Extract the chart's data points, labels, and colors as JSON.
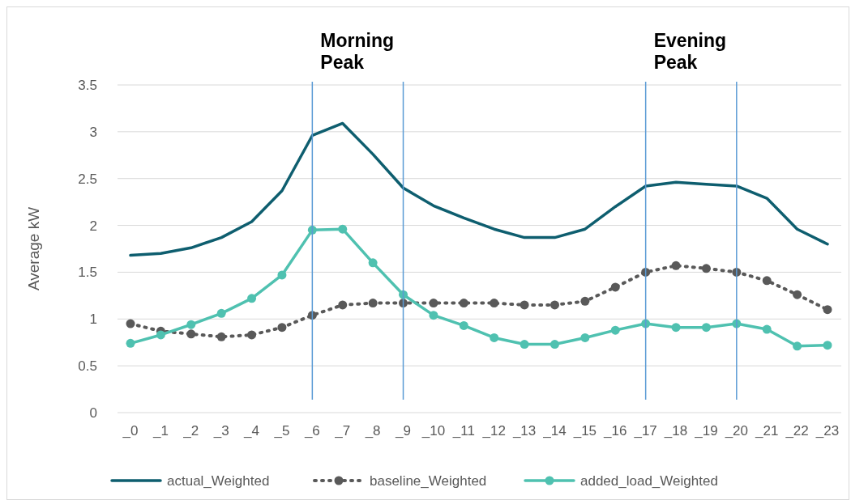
{
  "chart_data": {
    "type": "line",
    "ylabel": "Average kW",
    "categories": [
      "_0",
      "_1",
      "_2",
      "_3",
      "_4",
      "_5",
      "_6",
      "_7",
      "_8",
      "_9",
      "_10",
      "_11",
      "_12",
      "_13",
      "_14",
      "_15",
      "_16",
      "_17",
      "_18",
      "_19",
      "_20",
      "_21",
      "_22",
      "_23"
    ],
    "series": [
      {
        "name": "actual_Weighted",
        "color": "#0e5e6f",
        "marker": "none",
        "line_style": "solid",
        "values": [
          1.68,
          1.7,
          1.76,
          1.87,
          2.04,
          2.37,
          2.96,
          3.09,
          2.76,
          2.4,
          2.21,
          2.08,
          1.96,
          1.87,
          1.87,
          1.96,
          2.2,
          2.42,
          2.46,
          2.44,
          2.42,
          2.29,
          1.96,
          1.8
        ]
      },
      {
        "name": "baseline_Weighted",
        "color": "#595959",
        "marker": "circle",
        "line_style": "dotted",
        "values": [
          0.95,
          0.87,
          0.84,
          0.81,
          0.83,
          0.91,
          1.04,
          1.15,
          1.17,
          1.17,
          1.17,
          1.17,
          1.17,
          1.15,
          1.15,
          1.19,
          1.34,
          1.5,
          1.57,
          1.54,
          1.5,
          1.41,
          1.26,
          1.1
        ]
      },
      {
        "name": "added_load_Weighted",
        "color": "#4fc1b0",
        "marker": "circle",
        "line_style": "solid",
        "values": [
          0.74,
          0.83,
          0.94,
          1.06,
          1.22,
          1.47,
          1.95,
          1.96,
          1.6,
          1.26,
          1.04,
          0.93,
          0.8,
          0.73,
          0.73,
          0.8,
          0.88,
          0.95,
          0.91,
          0.91,
          0.95,
          0.89,
          0.71,
          0.72
        ]
      }
    ],
    "ylim": [
      0,
      3.5
    ],
    "yticks": [
      0,
      0.5,
      1,
      1.5,
      2,
      2.5,
      3,
      3.5
    ],
    "grid": "y",
    "legend": "bottom",
    "ref_lines": [
      {
        "axis": "x",
        "value": "_6",
        "label": "Morning Peak",
        "color": "#5b9bd5"
      },
      {
        "axis": "x",
        "value": "_9",
        "color": "#5b9bd5"
      },
      {
        "axis": "x",
        "value": "_17",
        "label": "Evening Peak",
        "color": "#5b9bd5"
      },
      {
        "axis": "x",
        "value": "_20",
        "color": "#5b9bd5"
      }
    ]
  }
}
